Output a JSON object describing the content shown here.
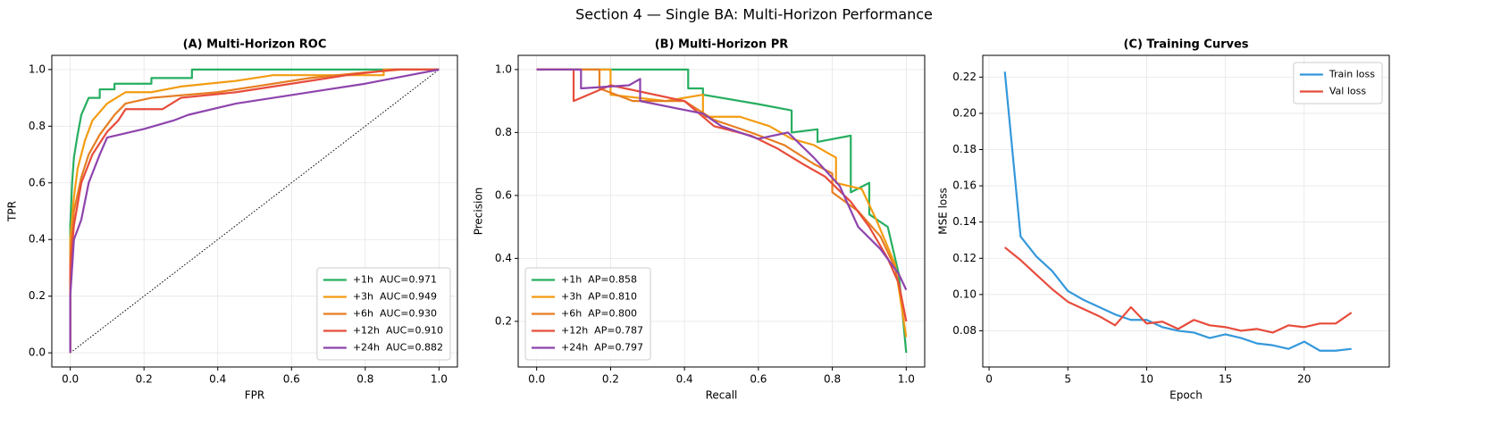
{
  "suptitle": "Section 4 — Single BA: Multi-Horizon Performance",
  "chart_data": [
    {
      "type": "line",
      "title": "(A) Multi-Horizon ROC",
      "xlabel": "FPR",
      "ylabel": "TPR",
      "xlim": [
        -0.05,
        1.05
      ],
      "ylim": [
        -0.05,
        1.05
      ],
      "xticks": [
        {
          "value": 0,
          "label": "0.0"
        },
        0.2,
        0.4,
        0.6,
        0.8,
        {
          "value": 1,
          "label": "1.0"
        }
      ],
      "yticks": [
        {
          "value": 0,
          "label": "0.0"
        },
        0.2,
        0.4,
        0.6,
        0.8,
        {
          "value": 1,
          "label": "1.0"
        }
      ],
      "grid": true,
      "legend": "lower right",
      "chance_line": {
        "x": [
          0,
          1
        ],
        "values": [
          0,
          1
        ]
      },
      "series": [
        {
          "name": "+1h  AUC=0.971",
          "color": "#27ae60",
          "x": [
            0,
            0,
            0.005,
            0.01,
            0.02,
            0.03,
            0.05,
            0.08,
            0.08,
            0.12,
            0.12,
            0.22,
            0.22,
            0.33,
            0.33,
            1
          ],
          "values": [
            0,
            0.45,
            0.6,
            0.69,
            0.77,
            0.84,
            0.9,
            0.9,
            0.93,
            0.93,
            0.95,
            0.95,
            0.97,
            0.97,
            1,
            1
          ]
        },
        {
          "name": "+3h  AUC=0.949",
          "color": "#f39c12",
          "x": [
            0,
            0,
            0.01,
            0.02,
            0.04,
            0.06,
            0.1,
            0.15,
            0.22,
            0.3,
            0.45,
            0.55,
            0.85,
            0.85,
            1
          ],
          "values": [
            0,
            0.4,
            0.55,
            0.65,
            0.75,
            0.82,
            0.88,
            0.92,
            0.92,
            0.94,
            0.96,
            0.98,
            0.98,
            1,
            1
          ]
        },
        {
          "name": "+6h  AUC=0.930",
          "color": "#e67e22",
          "x": [
            0,
            0,
            0.01,
            0.03,
            0.05,
            0.08,
            0.12,
            0.15,
            0.22,
            0.4,
            0.5,
            0.65,
            0.8,
            0.9,
            1
          ],
          "values": [
            0,
            0.35,
            0.5,
            0.62,
            0.7,
            0.77,
            0.84,
            0.88,
            0.9,
            0.92,
            0.94,
            0.97,
            0.99,
            1,
            1
          ]
        },
        {
          "name": "+12h  AUC=0.910",
          "color": "#e74c3c",
          "x": [
            0,
            0,
            0.01,
            0.03,
            0.06,
            0.1,
            0.13,
            0.15,
            0.25,
            0.3,
            0.45,
            0.6,
            0.75,
            0.88,
            1
          ],
          "values": [
            0,
            0.3,
            0.45,
            0.6,
            0.7,
            0.78,
            0.82,
            0.86,
            0.86,
            0.9,
            0.92,
            0.95,
            0.98,
            1,
            1
          ]
        },
        {
          "name": "+24h  AUC=0.882",
          "color": "#8e44ad",
          "x": [
            0,
            0,
            0.01,
            0.03,
            0.05,
            0.08,
            0.1,
            0.2,
            0.28,
            0.32,
            0.45,
            0.6,
            0.7,
            0.8,
            0.92,
            1
          ],
          "values": [
            0,
            0.2,
            0.4,
            0.47,
            0.6,
            0.7,
            0.76,
            0.79,
            0.82,
            0.84,
            0.88,
            0.91,
            0.93,
            0.95,
            0.98,
            1
          ]
        }
      ]
    },
    {
      "type": "line",
      "title": "(B) Multi-Horizon PR",
      "xlabel": "Recall",
      "ylabel": "Precision",
      "xlim": [
        -0.05,
        1.05
      ],
      "ylim": [
        0.055,
        1.045
      ],
      "xticks": [
        {
          "value": 0,
          "label": "0.0"
        },
        0.2,
        0.4,
        0.6,
        0.8,
        {
          "value": 1,
          "label": "1.0"
        }
      ],
      "yticks": [
        0.2,
        0.4,
        0.6,
        0.8,
        {
          "value": 1,
          "label": "1.0"
        }
      ],
      "grid": true,
      "legend": "lower left",
      "series": [
        {
          "name": "+1h  AP=0.858",
          "color": "#27ae60",
          "x": [
            0,
            0.41,
            0.41,
            0.45,
            0.45,
            0.6,
            0.69,
            0.69,
            0.76,
            0.76,
            0.85,
            0.85,
            0.9,
            0.9,
            0.95,
            0.98,
            1
          ],
          "values": [
            1,
            1,
            0.94,
            0.94,
            0.92,
            0.89,
            0.87,
            0.8,
            0.81,
            0.77,
            0.79,
            0.61,
            0.64,
            0.54,
            0.5,
            0.35,
            0.1
          ]
        },
        {
          "name": "+3h  AP=0.810",
          "color": "#f39c12",
          "x": [
            0,
            0.2,
            0.2,
            0.35,
            0.45,
            0.45,
            0.55,
            0.63,
            0.69,
            0.75,
            0.81,
            0.81,
            0.88,
            0.92,
            0.97,
            1
          ],
          "values": [
            1,
            1,
            0.92,
            0.9,
            0.92,
            0.85,
            0.85,
            0.82,
            0.78,
            0.76,
            0.72,
            0.64,
            0.62,
            0.52,
            0.38,
            0.15
          ]
        },
        {
          "name": "+6h  AP=0.800",
          "color": "#e67e22",
          "x": [
            0,
            0.17,
            0.17,
            0.26,
            0.4,
            0.48,
            0.58,
            0.67,
            0.75,
            0.8,
            0.8,
            0.87,
            0.93,
            0.97,
            1
          ],
          "values": [
            1,
            1,
            0.94,
            0.9,
            0.9,
            0.84,
            0.8,
            0.76,
            0.7,
            0.67,
            0.61,
            0.55,
            0.47,
            0.37,
            0.2
          ]
        },
        {
          "name": "+12h  AP=0.787",
          "color": "#e74c3c",
          "x": [
            0,
            0.1,
            0.1,
            0.2,
            0.4,
            0.48,
            0.58,
            0.65,
            0.72,
            0.78,
            0.85,
            0.9,
            0.95,
            0.98,
            1
          ],
          "values": [
            1,
            1,
            0.9,
            0.95,
            0.9,
            0.82,
            0.79,
            0.75,
            0.7,
            0.66,
            0.58,
            0.5,
            0.4,
            0.32,
            0.2
          ]
        },
        {
          "name": "+24h  AP=0.797",
          "color": "#8e44ad",
          "x": [
            0,
            0.12,
            0.12,
            0.25,
            0.28,
            0.28,
            0.45,
            0.5,
            0.6,
            0.68,
            0.75,
            0.82,
            0.87,
            0.93,
            0.98,
            1
          ],
          "values": [
            1,
            1,
            0.94,
            0.95,
            0.97,
            0.9,
            0.86,
            0.82,
            0.78,
            0.8,
            0.72,
            0.63,
            0.5,
            0.43,
            0.35,
            0.3
          ]
        }
      ]
    },
    {
      "type": "line",
      "title": "(C) Training Curves",
      "xlabel": "Epoch",
      "ylabel": "MSE loss",
      "xlim": [
        -0.4,
        25.4
      ],
      "ylim": [
        0.06,
        0.232
      ],
      "xticks": [
        0,
        5,
        10,
        15,
        20
      ],
      "yticks": [
        0.08,
        {
          "value": 0.1,
          "label": "0.10"
        },
        0.12,
        0.14,
        0.16,
        0.18,
        {
          "value": 0.2,
          "label": "0.20"
        },
        0.22
      ],
      "grid": true,
      "legend": "upper right",
      "series": [
        {
          "name": "Train loss",
          "color": "#3498db",
          "x": [
            1,
            2,
            3,
            4,
            5,
            6,
            7,
            8,
            9,
            10,
            11,
            12,
            13,
            14,
            15,
            16,
            17,
            18,
            19,
            20,
            21,
            22,
            23
          ],
          "values": [
            0.223,
            0.132,
            0.121,
            0.113,
            0.102,
            0.097,
            0.093,
            0.089,
            0.086,
            0.086,
            0.082,
            0.08,
            0.079,
            0.076,
            0.078,
            0.076,
            0.073,
            0.072,
            0.07,
            0.074,
            0.069,
            0.069,
            0.07
          ]
        },
        {
          "name": "Val loss",
          "color": "#e74c3c",
          "x": [
            1,
            2,
            3,
            4,
            5,
            6,
            7,
            8,
            9,
            10,
            11,
            12,
            13,
            14,
            15,
            16,
            17,
            18,
            19,
            20,
            21,
            22,
            23
          ],
          "values": [
            0.126,
            0.119,
            0.111,
            0.103,
            0.096,
            0.092,
            0.088,
            0.083,
            0.093,
            0.084,
            0.085,
            0.081,
            0.086,
            0.083,
            0.082,
            0.08,
            0.081,
            0.079,
            0.083,
            0.082,
            0.084,
            0.084,
            0.09
          ]
        }
      ]
    }
  ]
}
